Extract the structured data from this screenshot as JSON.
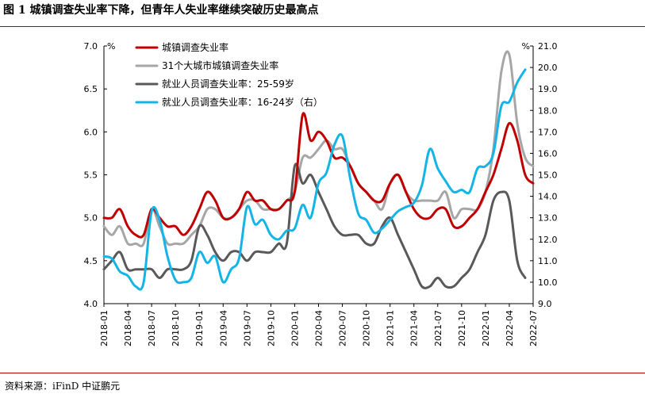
{
  "title": "图 1 城镇调查失业率下降，但青年人失业率继续突破历史最高点",
  "source": "资料来源：iFinD 中证鹏元",
  "chart_data": {
    "type": "line",
    "left_unit": "%",
    "right_unit": "%",
    "left_ylim": [
      4.0,
      7.0
    ],
    "left_ticks": [
      "4.0",
      "4.5",
      "5.0",
      "5.5",
      "6.0",
      "6.5",
      "7.0"
    ],
    "right_ylim": [
      9.0,
      21.0
    ],
    "right_ticks": [
      "9.0",
      "10.0",
      "11.0",
      "12.0",
      "13.0",
      "14.0",
      "15.0",
      "16.0",
      "17.0",
      "18.0",
      "19.0",
      "20.0",
      "21.0"
    ],
    "x_tick_labels": [
      "2018-01",
      "2018-04",
      "2018-07",
      "2018-10",
      "2019-01",
      "2019-04",
      "2019-07",
      "2019-10",
      "2020-01",
      "2020-04",
      "2020-07",
      "2020-10",
      "2021-01",
      "2021-04",
      "2021-07",
      "2021-10",
      "2022-01",
      "2022-04",
      "2022-07"
    ],
    "legend_position": "top-left",
    "series": [
      {
        "name": "城镇调查失业率",
        "axis": "left",
        "color": "#c00000",
        "values": [
          5.0,
          5.0,
          5.1,
          4.9,
          4.8,
          4.8,
          5.1,
          5.0,
          4.9,
          4.9,
          4.8,
          4.9,
          5.1,
          5.3,
          5.2,
          5.0,
          5.0,
          5.1,
          5.3,
          5.2,
          5.2,
          5.1,
          5.1,
          5.2,
          5.3,
          6.2,
          5.9,
          6.0,
          5.9,
          5.7,
          5.7,
          5.6,
          5.4,
          5.3,
          5.2,
          5.2,
          5.4,
          5.5,
          5.3,
          5.1,
          5.0,
          5.0,
          5.1,
          5.1,
          4.9,
          4.9,
          5.0,
          5.1,
          5.3,
          5.5,
          5.8,
          6.1,
          5.9,
          5.5,
          5.4
        ]
      },
      {
        "name": "31个大城市城镇调查失业率",
        "axis": "left",
        "color": "#a6a6a6",
        "values": [
          4.9,
          4.8,
          4.9,
          4.7,
          4.7,
          4.7,
          5.1,
          4.9,
          4.7,
          4.7,
          4.7,
          4.8,
          4.9,
          5.1,
          5.1,
          5.0,
          5.0,
          5.1,
          5.2,
          5.2,
          5.1,
          5.1,
          5.1,
          5.2,
          5.3,
          5.7,
          5.7,
          5.8,
          5.9,
          5.8,
          5.8,
          5.6,
          5.4,
          5.3,
          5.2,
          5.1,
          5.4,
          5.5,
          5.3,
          5.2,
          5.2,
          5.2,
          5.2,
          5.3,
          5.0,
          5.1,
          5.1,
          5.1,
          5.3,
          5.8,
          6.7,
          6.9,
          6.1,
          5.7,
          5.6
        ]
      },
      {
        "name": "就业人员调查失业率：25-59岁",
        "axis": "left",
        "color": "#595959",
        "values": [
          4.4,
          4.5,
          4.6,
          4.4,
          4.4,
          4.4,
          4.4,
          4.3,
          4.4,
          4.4,
          4.4,
          4.5,
          4.9,
          4.8,
          4.6,
          4.5,
          4.6,
          4.6,
          4.5,
          4.6,
          4.6,
          4.6,
          4.7,
          4.7,
          5.6,
          5.4,
          5.5,
          5.3,
          5.1,
          4.9,
          4.8,
          4.8,
          4.8,
          4.7,
          4.7,
          4.9,
          5.0,
          4.8,
          4.6,
          4.4,
          4.2,
          4.2,
          4.3,
          4.2,
          4.2,
          4.3,
          4.4,
          4.6,
          4.8,
          5.2,
          5.3,
          5.2,
          4.5,
          4.3
        ]
      },
      {
        "name": "就业人员调查失业率：16-24岁（右）",
        "axis": "right",
        "color": "#14b4e6",
        "values": [
          11.2,
          11.1,
          10.5,
          10.3,
          9.8,
          10.0,
          13.3,
          12.9,
          11.2,
          10.1,
          10.0,
          10.2,
          11.4,
          10.9,
          11.2,
          10.0,
          10.6,
          11.1,
          13.5,
          12.7,
          12.9,
          12.2,
          12.0,
          12.4,
          12.5,
          13.6,
          13.0,
          14.6,
          15.1,
          16.4,
          16.8,
          14.8,
          13.2,
          12.9,
          12.3,
          12.5,
          12.9,
          13.3,
          13.5,
          13.7,
          14.5,
          16.2,
          15.3,
          14.7,
          14.2,
          14.3,
          14.2,
          15.3,
          15.4,
          16.0,
          18.2,
          18.4,
          19.3,
          19.9
        ]
      }
    ]
  }
}
